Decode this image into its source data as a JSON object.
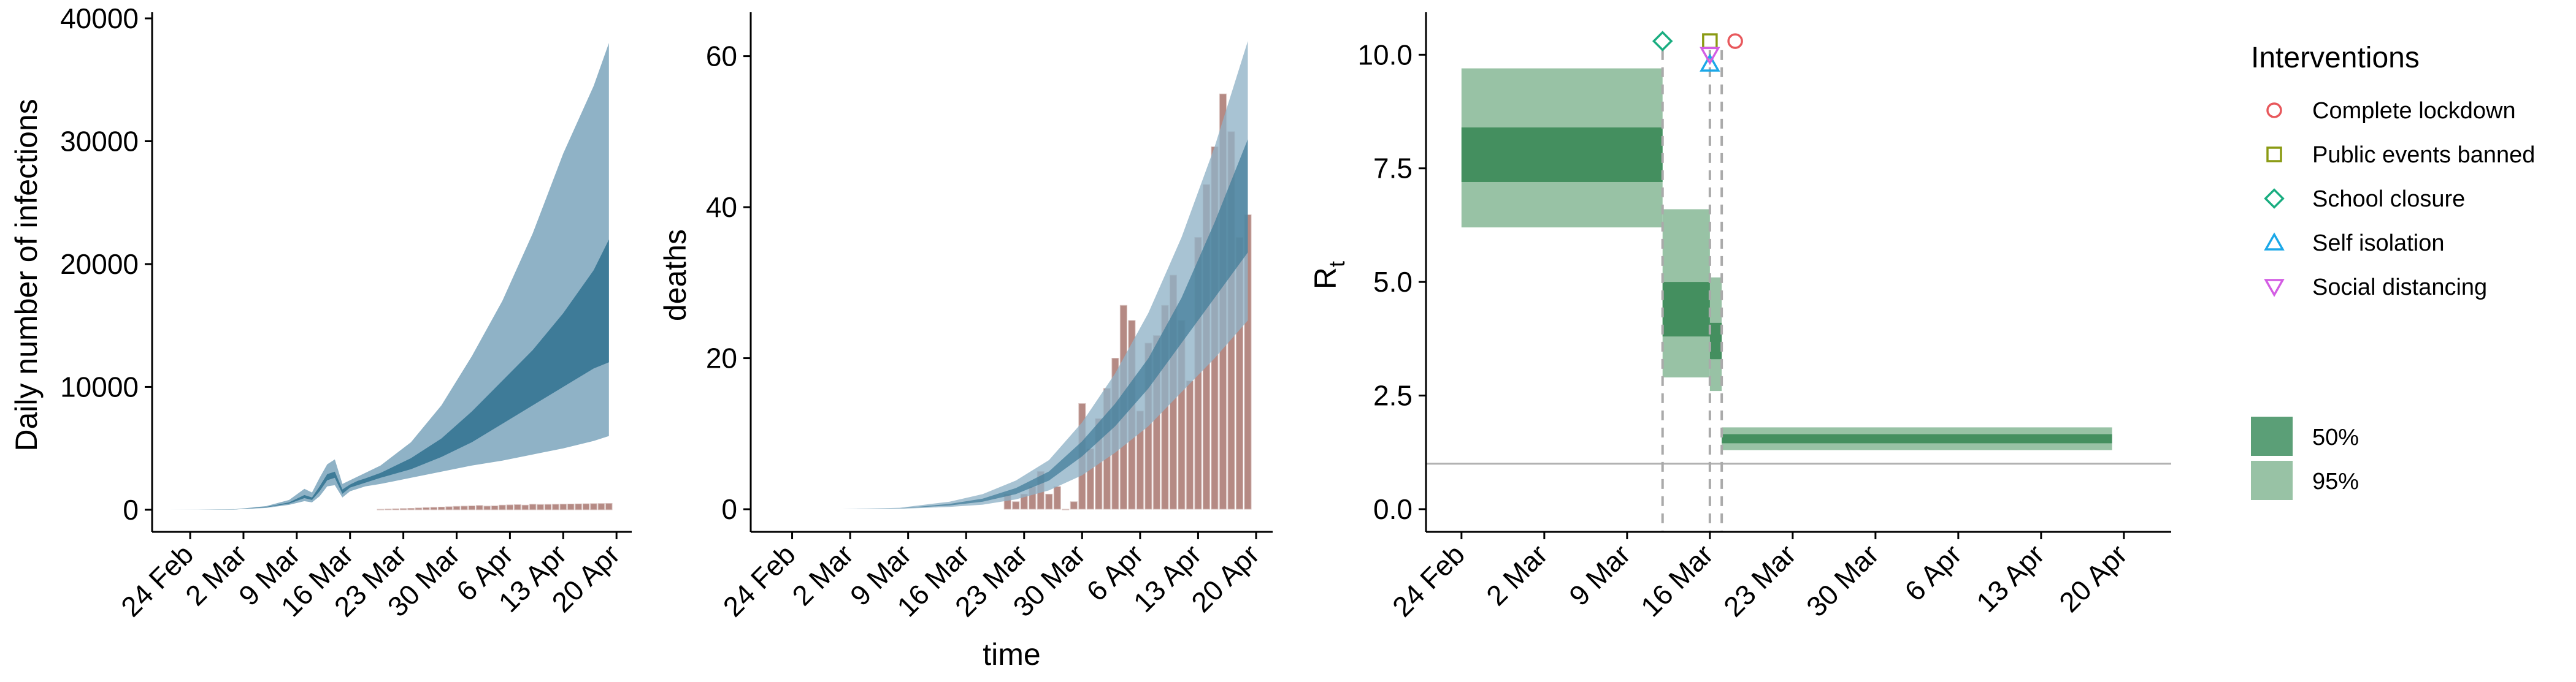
{
  "chart_data": [
    {
      "type": "area",
      "ylabel": "Daily number of infections",
      "xlabel": "",
      "x_start": "2020-02-21",
      "xticks": [
        "24 Feb",
        "2 Mar",
        "9 Mar",
        "16 Mar",
        "23 Mar",
        "30 Mar",
        "6 Apr",
        "13 Apr",
        "20 Apr"
      ],
      "xtick_dates": [
        "2020-02-24",
        "2020-03-02",
        "2020-03-09",
        "2020-03-16",
        "2020-03-23",
        "2020-03-30",
        "2020-04-06",
        "2020-04-13",
        "2020-04-20"
      ],
      "xlim": [
        "2020-02-19",
        "2020-04-22"
      ],
      "yticks": [
        "0",
        "10000",
        "20000",
        "30000",
        "40000"
      ],
      "ylim": [
        -1800,
        40000
      ],
      "series": [
        {
          "x": [
            "2020-02-21",
            "2020-02-25",
            "2020-03-01",
            "2020-03-05",
            "2020-03-08",
            "2020-03-10",
            "2020-03-11",
            "2020-03-12",
            "2020-03-13",
            "2020-03-14",
            "2020-03-15",
            "2020-03-16",
            "2020-03-17",
            "2020-03-18",
            "2020-03-20",
            "2020-03-24",
            "2020-03-28",
            "2020-04-01",
            "2020-04-05",
            "2020-04-09",
            "2020-04-13",
            "2020-04-17",
            "2020-04-19"
          ],
          "lower_95": [
            0,
            3,
            25,
            150,
            400,
            700,
            600,
            1100,
            1900,
            2000,
            1000,
            1500,
            1700,
            1900,
            2100,
            2600,
            3100,
            3600,
            4000,
            4500,
            5000,
            5600,
            6000
          ],
          "lower_50": [
            0,
            4,
            30,
            200,
            500,
            950,
            800,
            1500,
            2400,
            2600,
            1300,
            1800,
            2000,
            2200,
            2600,
            3300,
            4300,
            5500,
            7000,
            8500,
            10000,
            11500,
            12000
          ],
          "upper_50": [
            0,
            5,
            40,
            230,
            600,
            1200,
            1000,
            1900,
            2900,
            3100,
            1650,
            2050,
            2350,
            2550,
            3000,
            4200,
            5800,
            8000,
            10500,
            13000,
            16000,
            19500,
            22000
          ],
          "upper_95": [
            0,
            7,
            50,
            300,
            800,
            1700,
            1400,
            2600,
            3700,
            4100,
            2100,
            2400,
            2700,
            3000,
            3600,
            5500,
            8500,
            12500,
            17000,
            22500,
            29000,
            34500,
            38000
          ]
        }
      ],
      "bars": {
        "x": [
          "2020-03-20",
          "2020-03-21",
          "2020-03-22",
          "2020-03-23",
          "2020-03-24",
          "2020-03-25",
          "2020-03-26",
          "2020-03-27",
          "2020-03-28",
          "2020-03-29",
          "2020-03-30",
          "2020-03-31",
          "2020-04-01",
          "2020-04-02",
          "2020-04-03",
          "2020-04-04",
          "2020-04-05",
          "2020-04-06",
          "2020-04-07",
          "2020-04-08",
          "2020-04-09",
          "2020-04-10",
          "2020-04-11",
          "2020-04-12",
          "2020-04-13",
          "2020-04-14",
          "2020-04-15",
          "2020-04-16",
          "2020-04-17",
          "2020-04-18",
          "2020-04-19"
        ],
        "values": [
          40,
          60,
          80,
          100,
          120,
          150,
          180,
          200,
          220,
          250,
          280,
          300,
          320,
          350,
          300,
          320,
          380,
          400,
          420,
          380,
          450,
          430,
          440,
          450,
          460,
          470,
          480,
          490,
          500,
          510,
          520
        ]
      },
      "colors": {
        "band95": "#8fb2c6",
        "band50": "#3e7b98",
        "bar": "#b58a84",
        "bar_outline": "#d9c3c0"
      }
    },
    {
      "type": "bar",
      "ylabel": "deaths",
      "xlabel": "time",
      "x_start": "2020-02-21",
      "xticks": [
        "24 Feb",
        "2 Mar",
        "9 Mar",
        "16 Mar",
        "23 Mar",
        "30 Mar",
        "6 Apr",
        "13 Apr",
        "20 Apr"
      ],
      "xtick_dates": [
        "2020-02-24",
        "2020-03-02",
        "2020-03-09",
        "2020-03-16",
        "2020-03-23",
        "2020-03-30",
        "2020-04-06",
        "2020-04-13",
        "2020-04-20"
      ],
      "xlim": [
        "2020-02-19",
        "2020-04-22"
      ],
      "yticks": [
        "0",
        "20",
        "40",
        "60"
      ],
      "ylim": [
        -3,
        65
      ],
      "bars": {
        "x": [
          "2020-03-21",
          "2020-03-22",
          "2020-03-23",
          "2020-03-24",
          "2020-03-25",
          "2020-03-26",
          "2020-03-27",
          "2020-03-28",
          "2020-03-29",
          "2020-03-30",
          "2020-03-31",
          "2020-04-01",
          "2020-04-02",
          "2020-04-03",
          "2020-04-04",
          "2020-04-05",
          "2020-04-06",
          "2020-04-07",
          "2020-04-08",
          "2020-04-09",
          "2020-04-10",
          "2020-04-11",
          "2020-04-12",
          "2020-04-13",
          "2020-04-14",
          "2020-04-15",
          "2020-04-16",
          "2020-04-17",
          "2020-04-18",
          "2020-04-19"
        ],
        "values": [
          2,
          1,
          2,
          3,
          5,
          2,
          3,
          0,
          1,
          14,
          8,
          12,
          16,
          20,
          27,
          25,
          13,
          22,
          23,
          27,
          31,
          25,
          17,
          36,
          43,
          48,
          55,
          50,
          36,
          39
        ]
      },
      "series": [
        {
          "x": [
            "2020-02-21",
            "2020-03-01",
            "2020-03-08",
            "2020-03-14",
            "2020-03-18",
            "2020-03-22",
            "2020-03-26",
            "2020-03-30",
            "2020-04-03",
            "2020-04-07",
            "2020-04-11",
            "2020-04-15",
            "2020-04-19"
          ],
          "lower_95": [
            0,
            0,
            0.05,
            0.3,
            0.6,
            1.3,
            2.5,
            4.5,
            7.5,
            11,
            15.5,
            20,
            25
          ],
          "lower_50": [
            0,
            0,
            0.1,
            0.5,
            1,
            2,
            3.8,
            7,
            11,
            16,
            22,
            28,
            34
          ],
          "upper_50": [
            0,
            0,
            0.12,
            0.7,
            1.4,
            2.8,
            5,
            9,
            14,
            20,
            28,
            38,
            49
          ],
          "upper_95": [
            0,
            0,
            0.2,
            1,
            2,
            3.8,
            6.5,
            11.5,
            18,
            26,
            36,
            48,
            62
          ]
        }
      ],
      "colors": {
        "band95": "#8fb2c6",
        "band50": "#3e7b98",
        "bar": "#b58a84",
        "bar_outline": "#d9c3c0"
      }
    },
    {
      "type": "area",
      "ylabel": "Rt",
      "xlabel": "",
      "x_start": "2020-02-21",
      "xticks": [
        "24 Feb",
        "2 Mar",
        "9 Mar",
        "16 Mar",
        "23 Mar",
        "30 Mar",
        "6 Apr",
        "13 Apr",
        "20 Apr"
      ],
      "xtick_dates": [
        "2020-02-24",
        "2020-03-02",
        "2020-03-09",
        "2020-03-16",
        "2020-03-23",
        "2020-03-30",
        "2020-04-06",
        "2020-04-13",
        "2020-04-20"
      ],
      "xlim": [
        "2020-02-21",
        "2020-04-24"
      ],
      "yticks": [
        "0.0",
        "2.5",
        "5.0",
        "7.5",
        "10.0"
      ],
      "ylim": [
        -0.5,
        10.8
      ],
      "reference_line": 1,
      "segments": [
        {
          "x0": "2020-02-24",
          "x1": "2020-03-12",
          "lower_95": 6.2,
          "upper_95": 9.7,
          "lower_50": 7.2,
          "upper_50": 8.4
        },
        {
          "x0": "2020-03-12",
          "x1": "2020-03-16",
          "lower_95": 2.9,
          "upper_95": 6.6,
          "lower_50": 3.8,
          "upper_50": 5.0
        },
        {
          "x0": "2020-03-16",
          "x1": "2020-03-17",
          "lower_95": 2.6,
          "upper_95": 5.1,
          "lower_50": 3.3,
          "upper_50": 4.1
        },
        {
          "x0": "2020-03-17",
          "x1": "2020-04-19",
          "lower_95": 1.3,
          "upper_95": 1.8,
          "lower_50": 1.45,
          "upper_50": 1.65
        }
      ],
      "interventions": [
        {
          "name": "Complete lockdown",
          "date": "2020-03-17",
          "symbol": "circle",
          "color": "#e8585c",
          "marker_y": 10.3
        },
        {
          "name": "Public events banned",
          "date": "2020-03-16",
          "symbol": "square",
          "color": "#8a9a13",
          "marker_y": 10.3
        },
        {
          "name": "School closure",
          "date": "2020-03-12",
          "symbol": "diamond",
          "color": "#19ad80",
          "marker_y": 10.3
        },
        {
          "name": "Self isolation",
          "date": "2020-03-16",
          "symbol": "triangle-up",
          "color": "#1ba8e8",
          "marker_y": 9.8
        },
        {
          "name": "Social distancing",
          "date": "2020-03-16",
          "symbol": "triangle-down",
          "color": "#d35de3",
          "marker_y": 10.0
        }
      ],
      "legend": {
        "title": "Interventions",
        "items": [
          "Complete lockdown",
          "Public events banned",
          "School closure",
          "Self isolation",
          "Social distancing"
        ],
        "bands": [
          {
            "label": "50%",
            "color": "#5b9f77"
          },
          {
            "label": "95%",
            "color": "#98c2a5"
          }
        ],
        "position": "right"
      },
      "colors": {
        "band95": "#98c2a5",
        "band50": "#448f5f",
        "reference": "#b0b0b0",
        "dash": "#aaaaaa"
      }
    }
  ]
}
